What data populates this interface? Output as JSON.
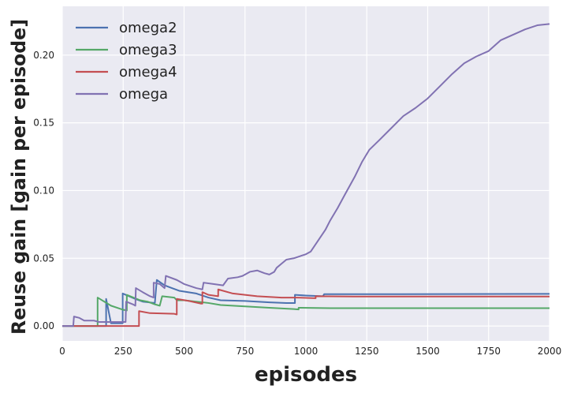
{
  "chart_data": {
    "type": "line",
    "title": "",
    "xlabel": "episodes",
    "ylabel": "Reuse gain [gain per episode]",
    "xlim": [
      0,
      2000
    ],
    "ylim": [
      -0.011,
      0.236
    ],
    "x_ticks": [
      0,
      250,
      500,
      750,
      1000,
      1250,
      1500,
      1750,
      2000
    ],
    "x_tick_labels": [
      "0",
      "250",
      "500",
      "750",
      "1000",
      "1250",
      "1500",
      "1750",
      "2000"
    ],
    "y_ticks": [
      0.0,
      0.05,
      0.1,
      0.15,
      0.2
    ],
    "y_tick_labels": [
      "0.00",
      "0.05",
      "0.10",
      "0.15",
      "0.20"
    ],
    "grid": true,
    "background": "#eaeaf2",
    "legend_position": "top-left",
    "series": [
      {
        "name": "omega2",
        "color": "#4c72b0",
        "points": [
          [
            0,
            0.0
          ],
          [
            180,
            0.0
          ],
          [
            180,
            0.02
          ],
          [
            200,
            0.002
          ],
          [
            248,
            0.002
          ],
          [
            248,
            0.024
          ],
          [
            300,
            0.02
          ],
          [
            330,
            0.018
          ],
          [
            380,
            0.017
          ],
          [
            388,
            0.034
          ],
          [
            420,
            0.03
          ],
          [
            450,
            0.028
          ],
          [
            480,
            0.026
          ],
          [
            550,
            0.024
          ],
          [
            600,
            0.021
          ],
          [
            650,
            0.019
          ],
          [
            750,
            0.0185
          ],
          [
            850,
            0.0175
          ],
          [
            920,
            0.017
          ],
          [
            955,
            0.017
          ],
          [
            955,
            0.023
          ],
          [
            1000,
            0.0225
          ],
          [
            1070,
            0.022
          ],
          [
            1075,
            0.0235
          ],
          [
            1300,
            0.0235
          ],
          [
            2000,
            0.0237
          ]
        ]
      },
      {
        "name": "omega3",
        "color": "#55a868",
        "points": [
          [
            0,
            0.0
          ],
          [
            145,
            0.0
          ],
          [
            145,
            0.021
          ],
          [
            200,
            0.015
          ],
          [
            250,
            0.012
          ],
          [
            265,
            0.0115
          ],
          [
            265,
            0.023
          ],
          [
            320,
            0.019
          ],
          [
            350,
            0.018
          ],
          [
            380,
            0.016
          ],
          [
            400,
            0.015
          ],
          [
            410,
            0.022
          ],
          [
            460,
            0.021
          ],
          [
            470,
            0.019
          ],
          [
            500,
            0.019
          ],
          [
            550,
            0.018
          ],
          [
            600,
            0.017
          ],
          [
            650,
            0.0155
          ],
          [
            750,
            0.0145
          ],
          [
            850,
            0.0135
          ],
          [
            950,
            0.0125
          ],
          [
            970,
            0.0122
          ],
          [
            970,
            0.0135
          ],
          [
            1100,
            0.0132
          ],
          [
            1500,
            0.0132
          ],
          [
            2000,
            0.0132
          ]
        ]
      },
      {
        "name": "omega4",
        "color": "#c44e52",
        "points": [
          [
            0,
            0.0
          ],
          [
            300,
            0.0
          ],
          [
            315,
            0.0
          ],
          [
            315,
            0.011
          ],
          [
            360,
            0.0095
          ],
          [
            460,
            0.009
          ],
          [
            470,
            0.0085
          ],
          [
            470,
            0.02
          ],
          [
            520,
            0.0185
          ],
          [
            570,
            0.0165
          ],
          [
            575,
            0.0165
          ],
          [
            575,
            0.025
          ],
          [
            600,
            0.023
          ],
          [
            640,
            0.022
          ],
          [
            640,
            0.027
          ],
          [
            700,
            0.024
          ],
          [
            800,
            0.022
          ],
          [
            900,
            0.021
          ],
          [
            960,
            0.021
          ],
          [
            1040,
            0.0205
          ],
          [
            1040,
            0.022
          ],
          [
            1200,
            0.0218
          ],
          [
            1500,
            0.0218
          ],
          [
            2000,
            0.0218
          ]
        ]
      },
      {
        "name": "omega",
        "color": "#8172b2",
        "points": [
          [
            0,
            0.0
          ],
          [
            45,
            0.0
          ],
          [
            48,
            0.007
          ],
          [
            70,
            0.006
          ],
          [
            90,
            0.004
          ],
          [
            130,
            0.004
          ],
          [
            150,
            0.003
          ],
          [
            180,
            0.003
          ],
          [
            220,
            0.003
          ],
          [
            260,
            0.003
          ],
          [
            262,
            0.018
          ],
          [
            290,
            0.016
          ],
          [
            300,
            0.015
          ],
          [
            302,
            0.028
          ],
          [
            330,
            0.025
          ],
          [
            360,
            0.022
          ],
          [
            375,
            0.021
          ],
          [
            375,
            0.032
          ],
          [
            400,
            0.031
          ],
          [
            420,
            0.028
          ],
          [
            425,
            0.037
          ],
          [
            470,
            0.034
          ],
          [
            500,
            0.031
          ],
          [
            550,
            0.028
          ],
          [
            575,
            0.027
          ],
          [
            580,
            0.032
          ],
          [
            620,
            0.031
          ],
          [
            660,
            0.03
          ],
          [
            680,
            0.035
          ],
          [
            720,
            0.036
          ],
          [
            740,
            0.037
          ],
          [
            770,
            0.04
          ],
          [
            800,
            0.041
          ],
          [
            830,
            0.039
          ],
          [
            850,
            0.038
          ],
          [
            870,
            0.04
          ],
          [
            880,
            0.043
          ],
          [
            900,
            0.046
          ],
          [
            920,
            0.049
          ],
          [
            950,
            0.05
          ],
          [
            1000,
            0.053
          ],
          [
            1020,
            0.055
          ],
          [
            1050,
            0.063
          ],
          [
            1080,
            0.071
          ],
          [
            1100,
            0.078
          ],
          [
            1130,
            0.087
          ],
          [
            1160,
            0.097
          ],
          [
            1200,
            0.11
          ],
          [
            1230,
            0.121
          ],
          [
            1260,
            0.13
          ],
          [
            1300,
            0.137
          ],
          [
            1350,
            0.146
          ],
          [
            1400,
            0.155
          ],
          [
            1450,
            0.161
          ],
          [
            1500,
            0.168
          ],
          [
            1550,
            0.177
          ],
          [
            1600,
            0.186
          ],
          [
            1650,
            0.194
          ],
          [
            1700,
            0.199
          ],
          [
            1750,
            0.203
          ],
          [
            1800,
            0.211
          ],
          [
            1850,
            0.215
          ],
          [
            1900,
            0.219
          ],
          [
            1950,
            0.222
          ],
          [
            2000,
            0.223
          ]
        ]
      }
    ]
  }
}
